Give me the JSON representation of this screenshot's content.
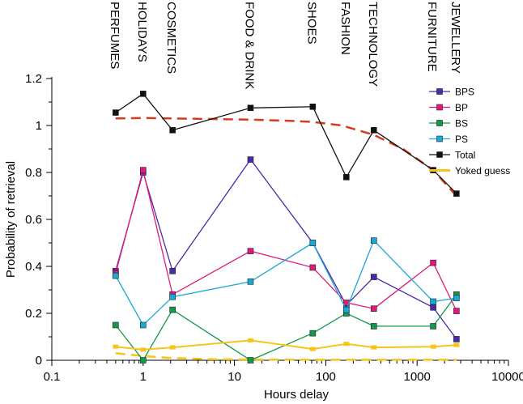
{
  "chart_data": {
    "type": "line",
    "xscale": "log",
    "xlabel": "Hours delay",
    "ylabel": "Probability of retrieval",
    "xlim": [
      0.1,
      10000
    ],
    "ylim": [
      0,
      1.2
    ],
    "xticks": [
      0.1,
      1,
      10,
      100,
      1000,
      10000
    ],
    "xtick_labels": [
      "0.1",
      "1",
      "10",
      "100",
      "1000",
      "10000"
    ],
    "yticks": [
      0,
      0.2,
      0.4,
      0.6,
      0.8,
      1,
      1.2
    ],
    "ytick_labels": [
      "0",
      "0.2",
      "0.4",
      "0.6",
      "0.8",
      "1",
      "1.2"
    ],
    "x": [
      0.5,
      1,
      2.1,
      15,
      72,
      168,
      336,
      1500,
      2700
    ],
    "category_labels": [
      {
        "label": "PERFUMES",
        "x": 0.5
      },
      {
        "label": "HOLIDAYS",
        "x": 1
      },
      {
        "label": "COSMETICS",
        "x": 2.1
      },
      {
        "label": "FOOD & DRINK",
        "x": 15
      },
      {
        "label": "SHOES",
        "x": 72
      },
      {
        "label": "FASHION",
        "x": 168
      },
      {
        "label": "TECHNOLOGY",
        "x": 336
      },
      {
        "label": "FURNITURE",
        "x": 1500
      },
      {
        "label": "JEWELLERY",
        "x": 2700
      }
    ],
    "legend_position": "top-right",
    "series": [
      {
        "name": "BPS",
        "color": "#4a2aa8",
        "values": [
          0.38,
          0.8,
          0.38,
          0.855,
          0.5,
          0.235,
          0.355,
          0.225,
          0.09
        ]
      },
      {
        "name": "BP",
        "color": "#e0197a",
        "values": [
          0.37,
          0.81,
          0.28,
          0.465,
          0.395,
          0.245,
          0.22,
          0.415,
          0.21
        ]
      },
      {
        "name": "BS",
        "color": "#109a4a",
        "values": [
          0.15,
          0.0,
          0.215,
          0.0,
          0.115,
          0.2,
          0.145,
          0.145,
          0.28
        ]
      },
      {
        "name": "PS",
        "color": "#1aa8d6",
        "values": [
          0.36,
          0.15,
          0.27,
          0.335,
          0.5,
          0.215,
          0.51,
          0.25,
          0.265
        ]
      },
      {
        "name": "Total",
        "color": "#111111",
        "values": [
          1.055,
          1.135,
          0.98,
          1.075,
          1.08,
          0.78,
          0.98,
          0.81,
          0.71
        ]
      },
      {
        "name": "Yoked guess",
        "color": "#f7c51a",
        "values": [
          0.058,
          0.045,
          0.055,
          0.085,
          0.048,
          0.07,
          0.055,
          0.058,
          0.065
        ]
      }
    ],
    "fit_curves": [
      {
        "name": "Total fit",
        "color": "#d63a1f",
        "dashed": true,
        "x": [
          0.5,
          1,
          2,
          5,
          15,
          40,
          72,
          150,
          336,
          700,
          1500,
          2700
        ],
        "y": [
          1.03,
          1.032,
          1.03,
          1.028,
          1.025,
          1.02,
          1.015,
          1.0,
          0.96,
          0.9,
          0.81,
          0.7
        ]
      },
      {
        "name": "Yoked guess fit",
        "color": "#f7c51a",
        "dashed": true,
        "x": [
          0.5,
          1,
          2,
          5,
          15,
          72,
          336,
          2700
        ],
        "y": [
          0.03,
          0.018,
          0.01,
          0.005,
          0.003,
          0.002,
          0.002,
          0.002
        ]
      }
    ]
  }
}
